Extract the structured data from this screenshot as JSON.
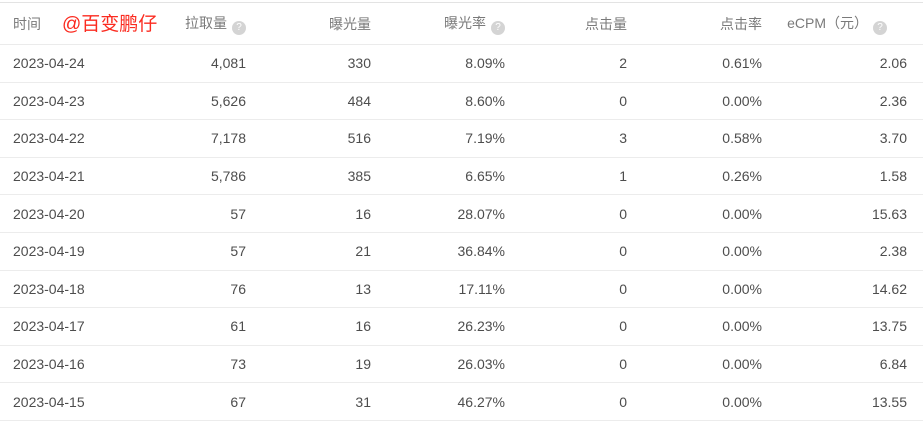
{
  "watermark": "@百变鹏仔",
  "icons": {
    "help_glyph": "?"
  },
  "colors": {
    "watermark_red": "#fb2b20",
    "header_text": "#7a7a7a",
    "cell_text": "#4d4d4d",
    "divider": "#ececec",
    "help_icon_bg": "#d4d4d4"
  },
  "table": {
    "columns": [
      {
        "key": "date",
        "label": "时间",
        "help": false
      },
      {
        "key": "pull-volume",
        "label": "拉取量",
        "help": true
      },
      {
        "key": "impressions",
        "label": "曝光量",
        "help": false
      },
      {
        "key": "impression-rate",
        "label": "曝光率",
        "help": true
      },
      {
        "key": "clicks",
        "label": "点击量",
        "help": false
      },
      {
        "key": "click-rate",
        "label": "点击率",
        "help": false
      },
      {
        "key": "ecpm",
        "label": "eCPM（元）",
        "help": true
      }
    ],
    "rows": [
      [
        "2023-04-24",
        "4,081",
        "330",
        "8.09%",
        "2",
        "0.61%",
        "2.06"
      ],
      [
        "2023-04-23",
        "5,626",
        "484",
        "8.60%",
        "0",
        "0.00%",
        "2.36"
      ],
      [
        "2023-04-22",
        "7,178",
        "516",
        "7.19%",
        "3",
        "0.58%",
        "3.70"
      ],
      [
        "2023-04-21",
        "5,786",
        "385",
        "6.65%",
        "1",
        "0.26%",
        "1.58"
      ],
      [
        "2023-04-20",
        "57",
        "16",
        "28.07%",
        "0",
        "0.00%",
        "15.63"
      ],
      [
        "2023-04-19",
        "57",
        "21",
        "36.84%",
        "0",
        "0.00%",
        "2.38"
      ],
      [
        "2023-04-18",
        "76",
        "13",
        "17.11%",
        "0",
        "0.00%",
        "14.62"
      ],
      [
        "2023-04-17",
        "61",
        "16",
        "26.23%",
        "0",
        "0.00%",
        "13.75"
      ],
      [
        "2023-04-16",
        "73",
        "19",
        "26.03%",
        "0",
        "0.00%",
        "6.84"
      ],
      [
        "2023-04-15",
        "67",
        "31",
        "46.27%",
        "0",
        "0.00%",
        "13.55"
      ]
    ]
  }
}
